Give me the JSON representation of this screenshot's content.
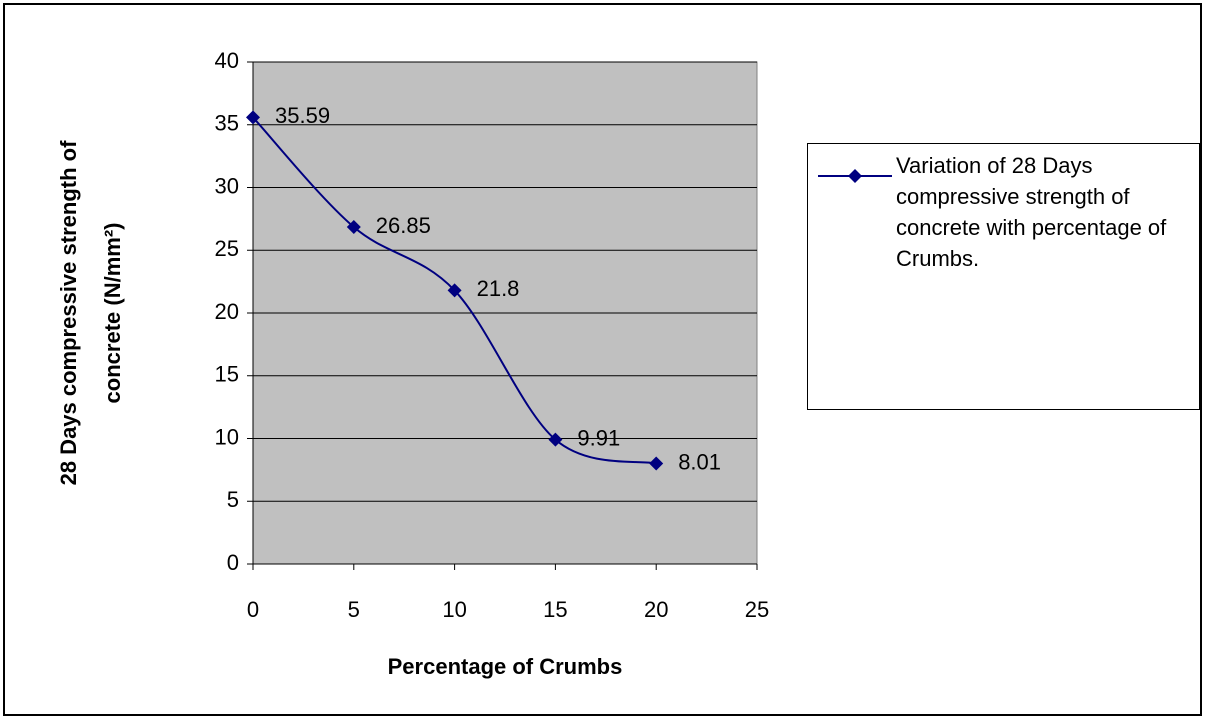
{
  "chart_data": {
    "type": "line",
    "xlabel": "Percentage of Crumbs",
    "ylabel": [
      "28 Days compressive strength of",
      "concrete (N/mm²)"
    ],
    "x": [
      0,
      5,
      10,
      15,
      20
    ],
    "series": [
      {
        "name": "Variation of 28 Days compressive strength of concrete with percentage of Crumbs.",
        "color": "#000080",
        "values": [
          35.59,
          26.85,
          21.8,
          9.91,
          8.01
        ]
      }
    ],
    "xlim": [
      0,
      25
    ],
    "xticks": [
      0,
      5,
      10,
      15,
      20,
      25
    ],
    "ylim": [
      0,
      40
    ],
    "yticks": [
      0,
      5,
      10,
      15,
      20,
      25,
      30,
      35,
      40
    ],
    "grid": true,
    "smooth": true,
    "legend": "right",
    "plot_background": "#c0c0c0"
  }
}
